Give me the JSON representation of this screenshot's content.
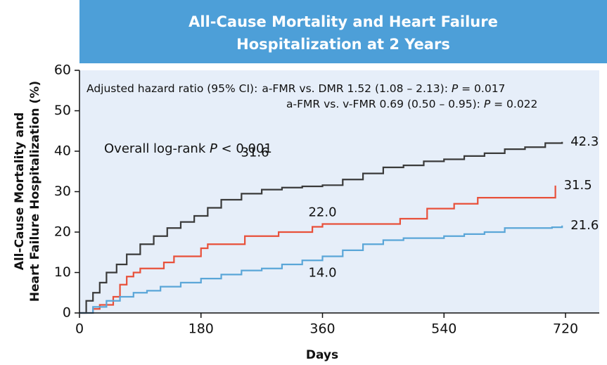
{
  "chart_data": {
    "type": "line",
    "step": true,
    "title": [
      "All-Cause Mortality and Heart Failure",
      "Hospitalization at 2 Years"
    ],
    "y_label": [
      "All-Cause Mortality and",
      "Heart Failure Hospitalization (%)"
    ],
    "x_label": "Days",
    "hazard_note": {
      "prefix": "Adjusted hazard ratio (95% CI):",
      "lines": [
        [
          "a-FMR vs. DMR 1.52 (1.08 – 2.13): ",
          "P",
          " = 0.017"
        ],
        [
          "a-FMR vs. v-FMR 0.69 (0.50 – 0.95): ",
          "P",
          " = 0.022"
        ]
      ]
    },
    "logrank_note": [
      "Overall log-rank ",
      "P",
      " < 0.001"
    ],
    "xlim": [
      0,
      770
    ],
    "ylim": [
      0,
      60
    ],
    "xticks": [
      0,
      180,
      360,
      540,
      720
    ],
    "yticks": [
      0,
      10,
      20,
      30,
      40,
      50,
      60
    ],
    "background": "#e6eef9",
    "series": [
      {
        "color": "#3a3a3a",
        "x": [
          0,
          10,
          20,
          30,
          40,
          55,
          70,
          90,
          110,
          130,
          150,
          170,
          190,
          210,
          240,
          270,
          300,
          330,
          360,
          390,
          420,
          450,
          480,
          510,
          540,
          570,
          600,
          630,
          660,
          690,
          715
        ],
        "values": [
          0,
          3,
          5,
          7.5,
          10,
          12,
          14.5,
          17,
          19,
          21,
          22.5,
          24,
          26,
          28,
          29.5,
          30.5,
          31,
          31.3,
          31.6,
          33,
          34.5,
          36,
          36.5,
          37.5,
          38,
          38.8,
          39.5,
          40.5,
          41,
          42,
          42.3
        ],
        "value_labels": [
          null,
          null,
          null,
          null,
          null,
          null,
          null,
          null,
          null,
          null,
          null,
          null,
          null,
          null,
          null,
          null,
          null,
          null,
          "31.6",
          null,
          null,
          null,
          null,
          null,
          null,
          null,
          null,
          null,
          null,
          null,
          "42.3"
        ]
      },
      {
        "color": "#e8503a",
        "x": [
          0,
          20,
          30,
          50,
          60,
          70,
          80,
          90,
          125,
          140,
          180,
          190,
          245,
          295,
          345,
          360,
          475,
          515,
          555,
          590,
          705
        ],
        "values": [
          0,
          1,
          2,
          4,
          7,
          9,
          10,
          11,
          12.5,
          14,
          16,
          17,
          19,
          20,
          21.3,
          22,
          23.3,
          25.8,
          27,
          28.5,
          31.5
        ],
        "value_labels": [
          null,
          null,
          null,
          null,
          null,
          null,
          null,
          null,
          null,
          null,
          null,
          null,
          null,
          null,
          null,
          "22.0",
          null,
          null,
          null,
          null,
          "31.5"
        ]
      },
      {
        "color": "#5aa6d8",
        "x": [
          0,
          20,
          40,
          60,
          80,
          100,
          120,
          150,
          180,
          210,
          240,
          270,
          300,
          330,
          360,
          390,
          420,
          450,
          480,
          540,
          570,
          600,
          630,
          700,
          715
        ],
        "values": [
          0,
          1.5,
          3,
          4,
          5,
          5.5,
          6.5,
          7.5,
          8.5,
          9.5,
          10.5,
          11,
          12,
          13,
          14,
          15.5,
          17,
          18,
          18.5,
          19,
          19.5,
          20,
          21,
          21.2,
          21.6
        ],
        "value_labels": [
          null,
          null,
          null,
          null,
          null,
          null,
          null,
          null,
          null,
          null,
          null,
          null,
          null,
          null,
          "14.0",
          null,
          null,
          null,
          null,
          null,
          null,
          null,
          null,
          null,
          "21.6"
        ]
      }
    ]
  }
}
